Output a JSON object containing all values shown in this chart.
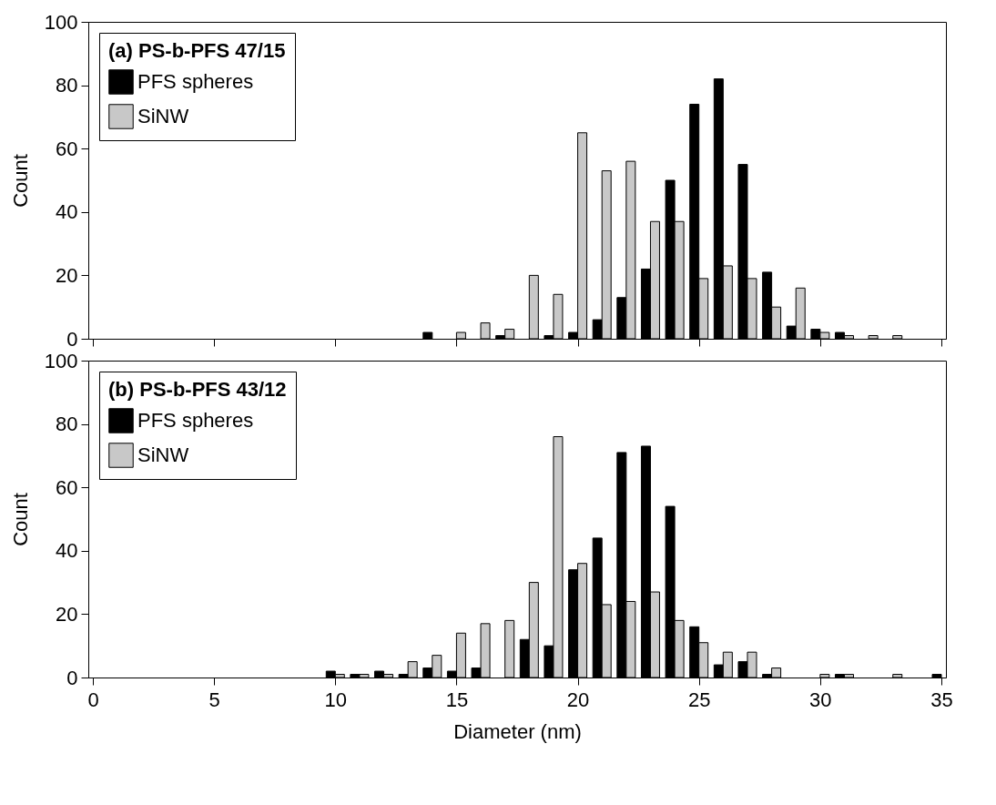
{
  "chart_data": [
    {
      "type": "bar",
      "legend_title": "(a) PS-b-PFS 47/15",
      "ylabel": "Count",
      "x": [
        14,
        15,
        16,
        17,
        18,
        19,
        20,
        21,
        22,
        23,
        24,
        25,
        26,
        27,
        28,
        29,
        30,
        31,
        32,
        33
      ],
      "xlim": [
        0,
        35
      ],
      "xticks": [
        0,
        5,
        10,
        15,
        20,
        25,
        30,
        35
      ],
      "ylim": [
        0,
        100
      ],
      "yticks": [
        0,
        20,
        40,
        60,
        80,
        100
      ],
      "tick_labels": "y",
      "legend": "top left",
      "grid": false,
      "series": [
        {
          "name": "PFS spheres",
          "color": "#000000",
          "values": [
            2,
            null,
            null,
            1,
            null,
            1,
            2,
            6,
            13,
            22,
            50,
            74,
            82,
            55,
            21,
            4,
            3,
            2,
            null,
            null
          ]
        },
        {
          "name": "SiNW",
          "color": "#c8c8c8",
          "values": [
            null,
            2,
            5,
            3,
            20,
            14,
            65,
            53,
            56,
            37,
            37,
            19,
            23,
            19,
            10,
            16,
            2,
            1,
            1,
            1
          ]
        }
      ]
    },
    {
      "type": "bar",
      "legend_title": "(b) PS-b-PFS 43/12",
      "xlabel": "Diameter (nm)",
      "ylabel": "Count",
      "x": [
        10,
        11,
        12,
        13,
        14,
        15,
        16,
        17,
        18,
        19,
        20,
        21,
        22,
        23,
        24,
        25,
        26,
        27,
        28,
        30,
        31,
        33,
        35
      ],
      "xlim": [
        0,
        35
      ],
      "xticks": [
        0,
        5,
        10,
        15,
        20,
        25,
        30,
        35
      ],
      "ylim": [
        0,
        100
      ],
      "yticks": [
        0,
        20,
        40,
        60,
        80,
        100
      ],
      "legend": "top left",
      "grid": false,
      "series": [
        {
          "name": "PFS spheres",
          "color": "#000000",
          "values": [
            2,
            1,
            2,
            1,
            3,
            2,
            3,
            null,
            12,
            10,
            34,
            44,
            71,
            73,
            54,
            16,
            4,
            5,
            1,
            null,
            1,
            null,
            1
          ]
        },
        {
          "name": "SiNW",
          "color": "#c8c8c8",
          "values": [
            1,
            1,
            1,
            5,
            7,
            14,
            17,
            18,
            30,
            76,
            36,
            23,
            24,
            27,
            18,
            11,
            8,
            8,
            3,
            1,
            1,
            1,
            null
          ]
        }
      ]
    }
  ]
}
